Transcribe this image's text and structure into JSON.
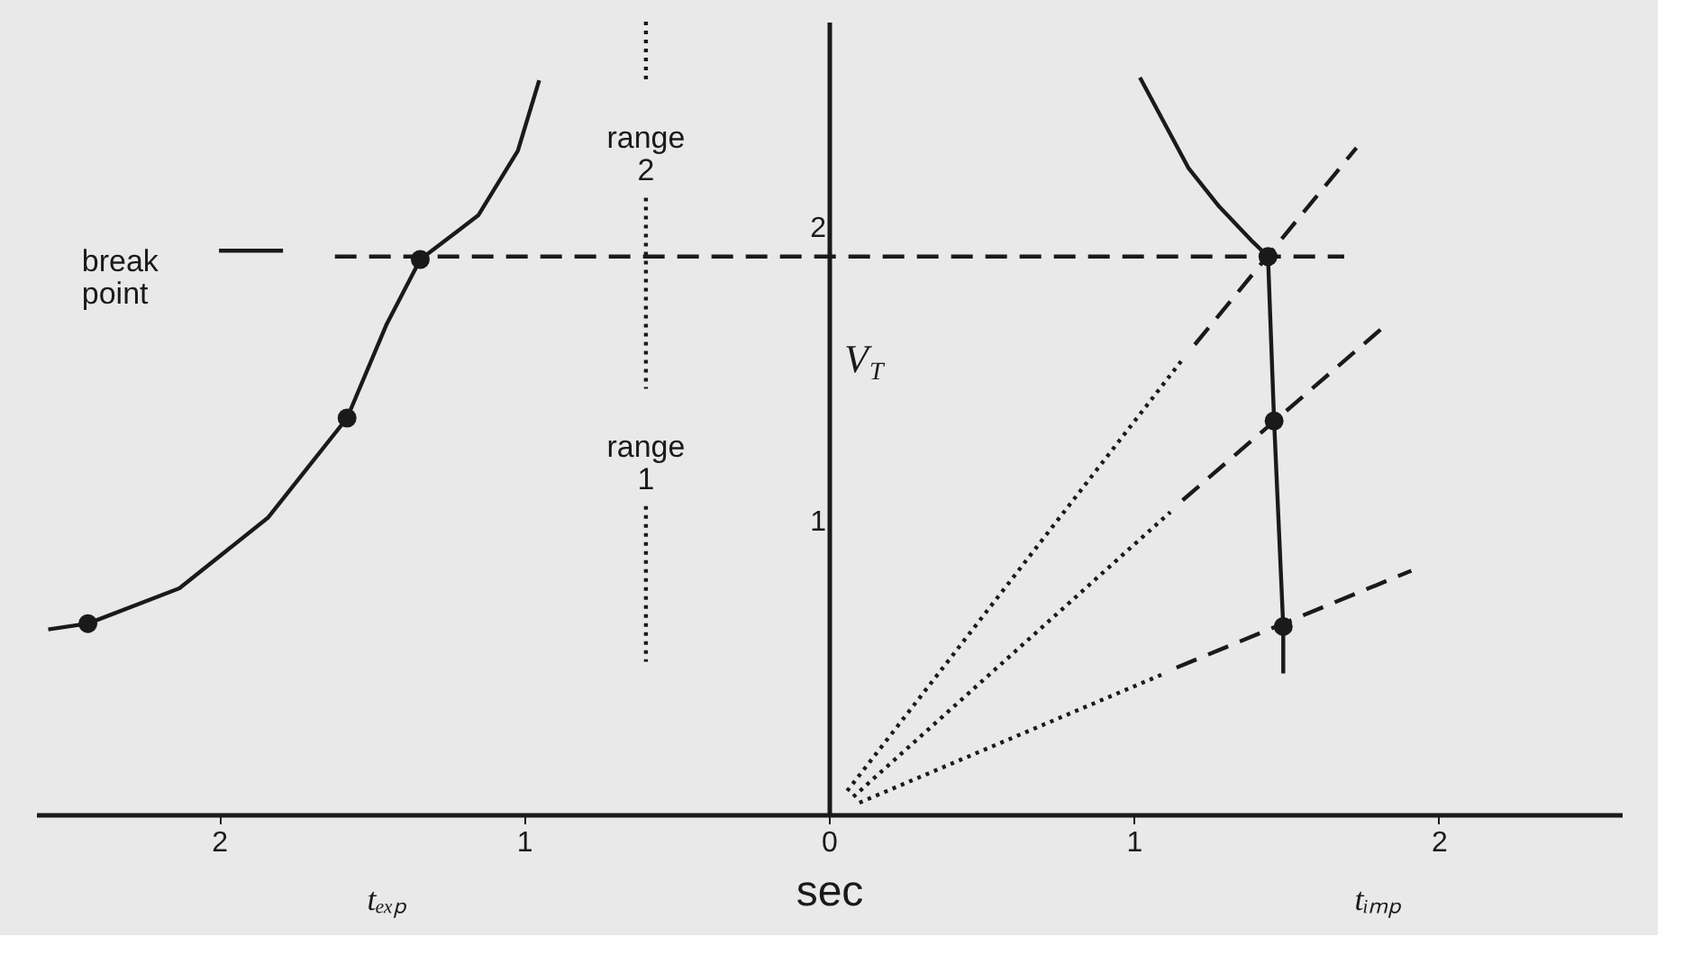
{
  "chart_data": {
    "type": "line",
    "xlabel": "sec",
    "ylabel": "V$_{T}$",
    "xlim": [
      -2.6,
      2.6
    ],
    "ylim": [
      0,
      2.7
    ],
    "xticks": [
      {
        "value": -2,
        "label": "2"
      },
      {
        "value": -1,
        "label": "1"
      },
      0,
      1,
      2
    ],
    "yticks": [
      1,
      2
    ],
    "grid": false,
    "series": [
      {
        "color": "#1a1a1a",
        "line_style": "solid",
        "x": [
          -2.56,
          -2.43,
          -2.13,
          -1.84,
          -1.58,
          -1.45,
          -1.34,
          -1.15,
          -1.02,
          -0.95
        ],
        "values": [
          0.63,
          0.65,
          0.77,
          1.01,
          1.35,
          1.67,
          1.89,
          2.04,
          2.26,
          2.5
        ]
      },
      {
        "type": "scatter",
        "color": "#1a1a1a",
        "marker": "circle",
        "x": [
          -2.43,
          -1.58,
          -1.34
        ],
        "values": [
          0.65,
          1.35,
          1.89
        ]
      },
      {
        "color": "#1a1a1a",
        "line_style": "solid",
        "x": [
          1.02,
          1.18,
          1.28,
          1.39,
          1.44
        ],
        "values": [
          2.51,
          2.2,
          2.07,
          1.95,
          1.9
        ]
      },
      {
        "color": "#1a1a1a",
        "line_style": "solid",
        "x": [
          1.44,
          1.46,
          1.49,
          1.49
        ],
        "values": [
          1.9,
          1.34,
          0.64,
          0.48
        ]
      },
      {
        "type": "scatter",
        "color": "#1a1a1a",
        "marker": "circle",
        "x": [
          1.44,
          1.46,
          1.49
        ],
        "values": [
          1.9,
          1.34,
          0.64
        ]
      },
      {
        "color": "#1a1a1a",
        "line_style": "dotted",
        "x": [
          0.06,
          1.16
        ],
        "values": [
          0.08,
          1.55
        ]
      },
      {
        "color": "#1a1a1a",
        "line_style": "dashed",
        "x": [
          1.2,
          1.73
        ],
        "values": [
          1.6,
          2.27
        ]
      },
      {
        "color": "#1a1a1a",
        "line_style": "dotted",
        "x": [
          0.08,
          1.12
        ],
        "values": [
          0.06,
          1.03
        ]
      },
      {
        "color": "#1a1a1a",
        "line_style": "dashed",
        "x": [
          1.16,
          1.83
        ],
        "values": [
          1.07,
          1.67
        ]
      },
      {
        "color": "#1a1a1a",
        "line_style": "dotted",
        "x": [
          0.1,
          1.1
        ],
        "values": [
          0.04,
          0.48
        ]
      },
      {
        "color": "#1a1a1a",
        "line_style": "dashed",
        "x": [
          1.14,
          1.91
        ],
        "values": [
          0.5,
          0.83
        ]
      },
      {
        "color": "#1a1a1a",
        "line_style": "dashed",
        "x": [
          -1.62,
          1.69
        ],
        "values": [
          1.9,
          1.9
        ]
      },
      {
        "color": "#1a1a1a",
        "line_style": "dotted",
        "x": [
          -0.6,
          -0.6
        ],
        "values": [
          2.7,
          2.5
        ]
      },
      {
        "color": "#1a1a1a",
        "line_style": "dotted",
        "x": [
          -0.6,
          -0.6
        ],
        "values": [
          2.1,
          1.45
        ]
      },
      {
        "color": "#1a1a1a",
        "line_style": "dotted",
        "x": [
          -0.6,
          -0.6
        ],
        "values": [
          1.05,
          0.52
        ]
      },
      {
        "color": "#1a1a1a",
        "line_style": "solid",
        "x": [
          -2.0,
          -1.79
        ],
        "values": [
          1.92,
          1.92
        ]
      }
    ],
    "annotations": [
      "break point",
      "range 2",
      "range 1",
      "tₑₓₚ",
      "tᵢₘₚ"
    ]
  }
}
